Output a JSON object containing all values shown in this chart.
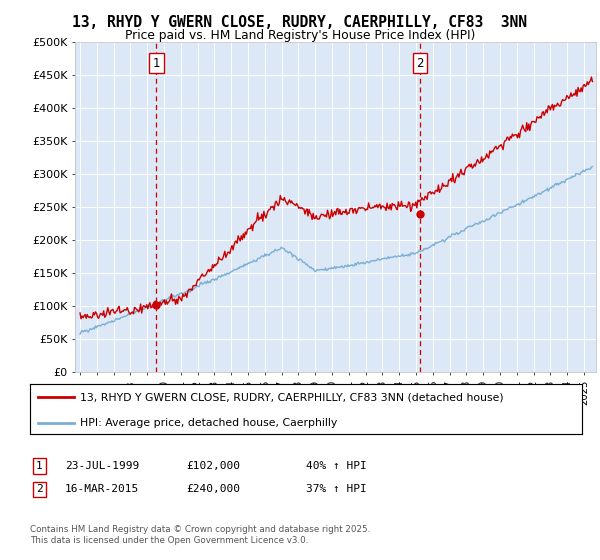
{
  "title": "13, RHYD Y GWERN CLOSE, RUDRY, CAERPHILLY, CF83  3NN",
  "subtitle": "Price paid vs. HM Land Registry's House Price Index (HPI)",
  "ylabel_ticks": [
    0,
    50000,
    100000,
    150000,
    200000,
    250000,
    300000,
    350000,
    400000,
    450000,
    500000
  ],
  "ylabel_labels": [
    "£0",
    "£50K",
    "£100K",
    "£150K",
    "£200K",
    "£250K",
    "£300K",
    "£350K",
    "£400K",
    "£450K",
    "£500K"
  ],
  "xmin": 1994.7,
  "xmax": 2025.7,
  "ymin": 0,
  "ymax": 500000,
  "vline1_x": 1999.55,
  "vline2_x": 2015.21,
  "sale1_dot_price": 102000,
  "sale2_dot_price": 240000,
  "legend_line1": "13, RHYD Y GWERN CLOSE, RUDRY, CAERPHILLY, CF83 3NN (detached house)",
  "legend_line2": "HPI: Average price, detached house, Caerphilly",
  "footer": "Contains HM Land Registry data © Crown copyright and database right 2025.\nThis data is licensed under the Open Government Licence v3.0.",
  "red_color": "#cc0000",
  "blue_color": "#7bafd4",
  "bg_color": "#dce8f5",
  "grid_color": "#ffffff"
}
